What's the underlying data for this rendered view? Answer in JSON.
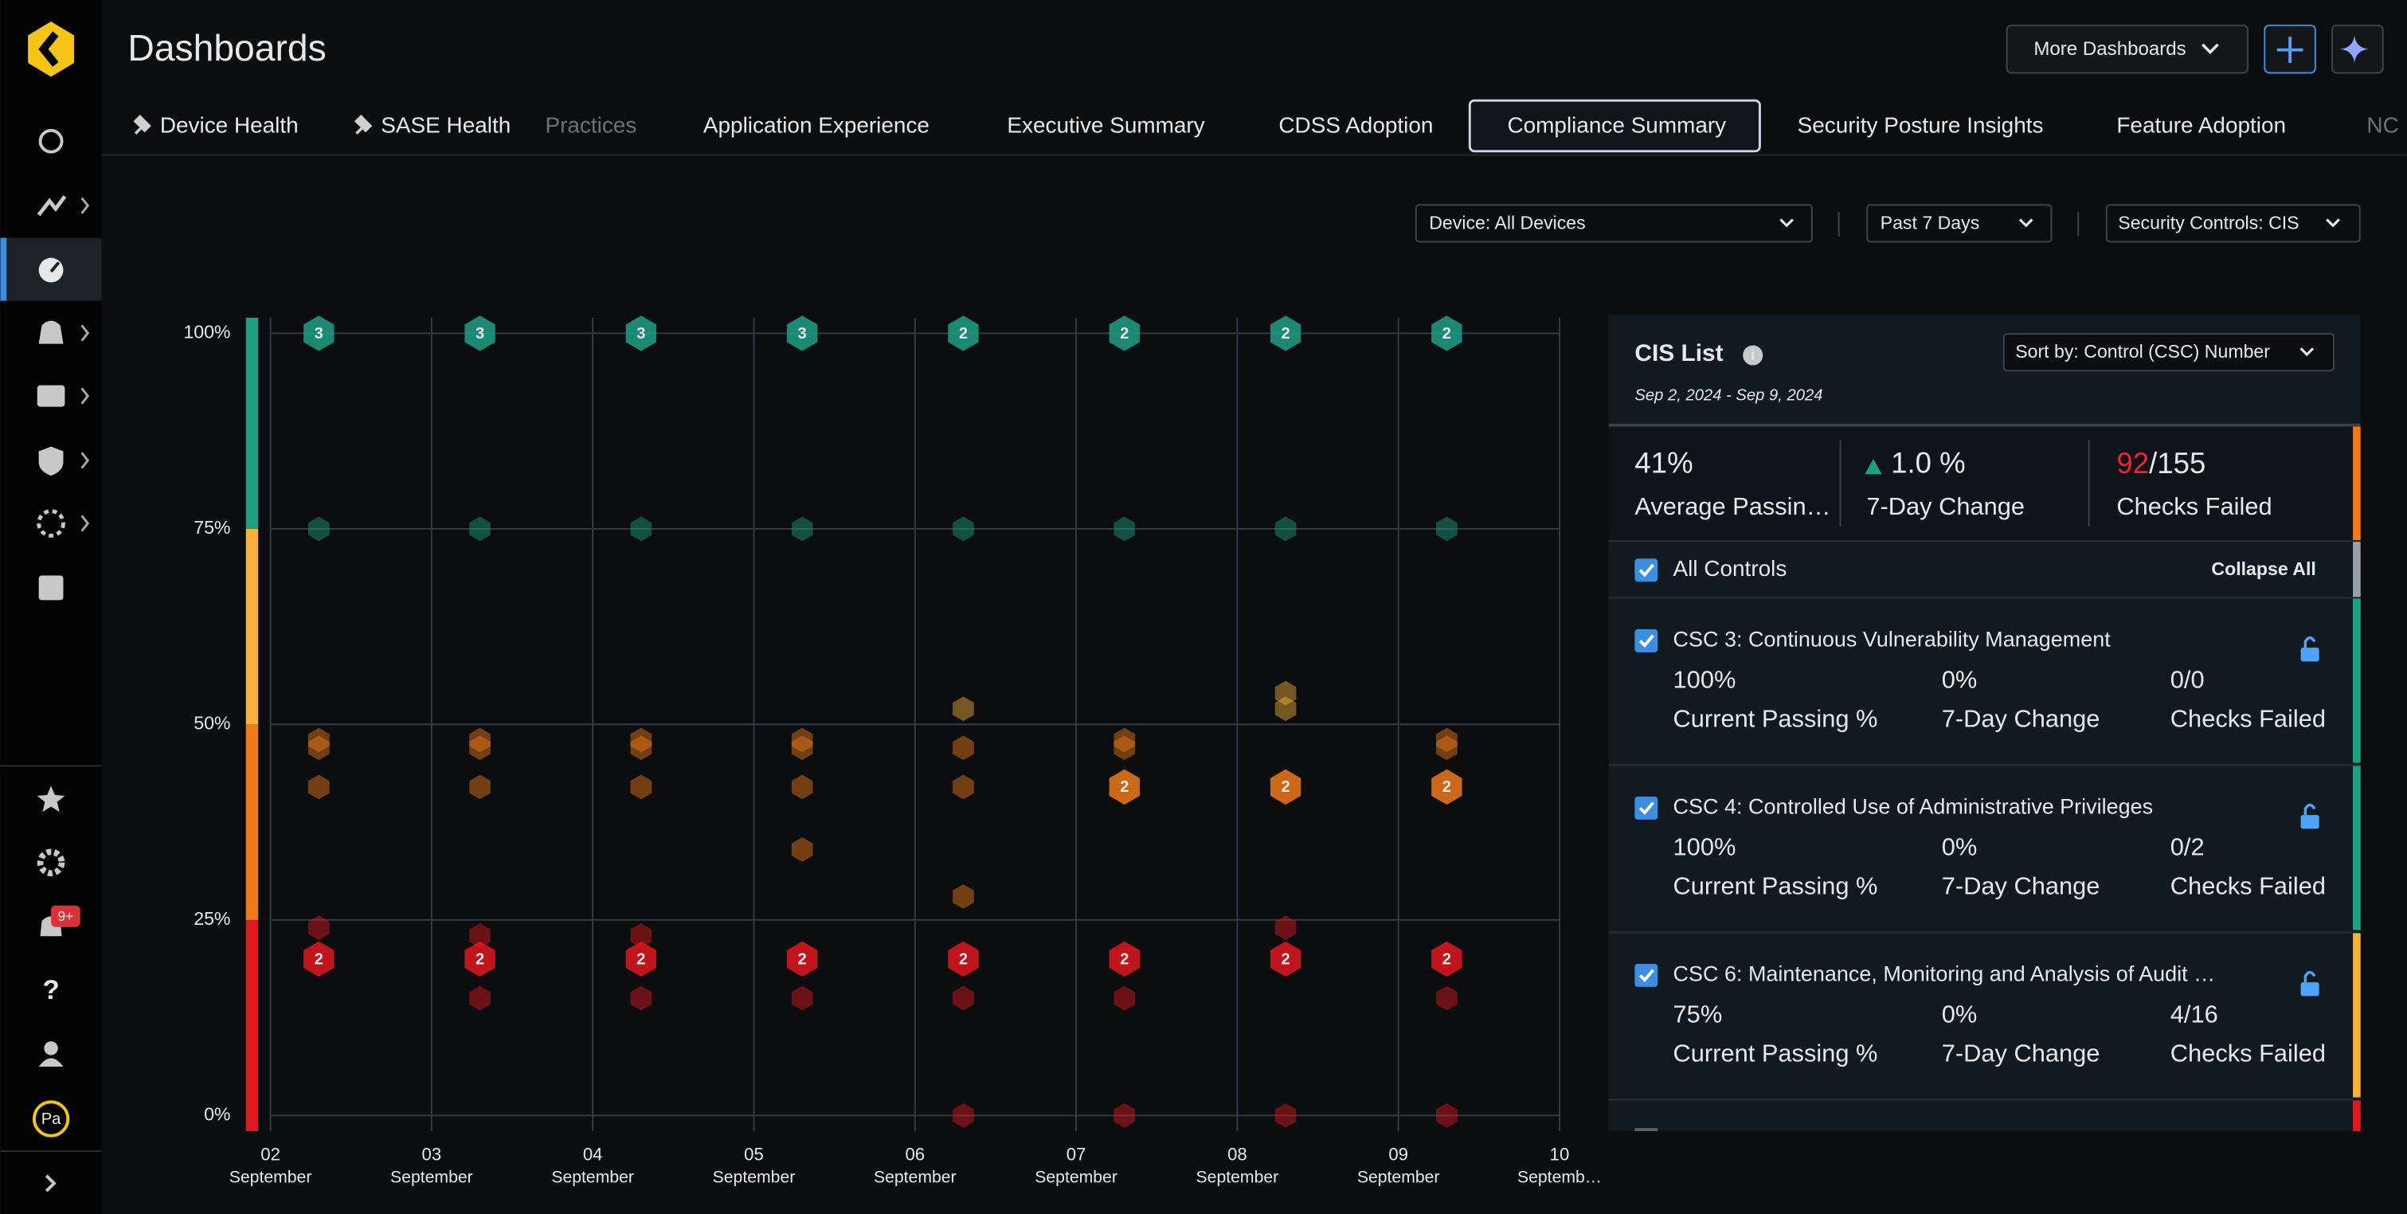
{
  "header": {
    "title": "Dashboards",
    "more_dashboards": "More Dashboards"
  },
  "sidebar": {
    "notification_badge": "9+",
    "avatar": "Pa"
  },
  "tabs": [
    "Device Health",
    "SASE Health",
    "Practices",
    "Application Experience",
    "Executive Summary",
    "CDSS Adoption",
    "Compliance Summary",
    "Security Posture Insights",
    "Feature Adoption",
    "NC"
  ],
  "filters": [
    "Device: All Devices",
    "Past 7 Days",
    "Security Controls: CIS"
  ],
  "chart_data": {
    "type": "scatter",
    "xlim": [
      2,
      10
    ],
    "xticks": [
      {
        "value": 2,
        "label": "02"
      },
      {
        "value": 3,
        "label": "03"
      },
      {
        "value": 4,
        "label": "04"
      },
      {
        "value": 5,
        "label": "05"
      },
      {
        "value": 6,
        "label": "06"
      },
      {
        "value": 7,
        "label": "07"
      },
      {
        "value": 8,
        "label": "08"
      },
      {
        "value": 9,
        "label": "09"
      },
      10
    ],
    "xtick_months": [
      "September",
      "September",
      "September",
      "September",
      "September",
      "September",
      "September",
      "September",
      "Septemb…"
    ],
    "ylim": [
      -2,
      102
    ],
    "yticks": [
      {
        "value": 0,
        "label": "0%"
      },
      {
        "value": 25,
        "label": "25%"
      },
      {
        "value": 50,
        "label": "50%"
      },
      {
        "value": 75,
        "label": "75%"
      },
      {
        "value": 100,
        "label": "100%"
      }
    ],
    "grid": true,
    "bands": [
      {
        "from": 0,
        "to": 25,
        "color": "#e0181f"
      },
      {
        "from": 25,
        "to": 50,
        "color": "#ef7a1a"
      },
      {
        "from": 50,
        "to": 75,
        "color": "#f6b23c"
      },
      {
        "from": 75,
        "to": 100,
        "color": "#1fa085"
      }
    ],
    "x": [
      2.3,
      2.3,
      2.3,
      2.3,
      2.3,
      2.3,
      2.3,
      3.3,
      3.3,
      3.3,
      3.3,
      3.3,
      3.3,
      3.3,
      3.3,
      4.3,
      4.3,
      4.3,
      4.3,
      4.3,
      4.3,
      4.3,
      4.3,
      5.3,
      5.3,
      5.3,
      5.3,
      5.3,
      5.3,
      5.3,
      5.3,
      6.3,
      6.3,
      6.3,
      6.3,
      6.3,
      6.3,
      6.3,
      6.3,
      6.3,
      7.3,
      7.3,
      7.3,
      7.3,
      7.3,
      7.3,
      7.3,
      7.3,
      8.3,
      8.3,
      8.3,
      8.3,
      8.3,
      8.3,
      8.3,
      8.3,
      9.3,
      9.3,
      9.3,
      9.3,
      9.3,
      9.3,
      9.3,
      9.3
    ],
    "values": [
      100,
      75,
      48,
      47,
      42,
      24,
      20,
      100,
      75,
      48,
      47,
      42,
      23,
      20,
      15,
      100,
      75,
      48,
      47,
      42,
      23,
      20,
      15,
      100,
      75,
      48,
      47,
      42,
      34,
      20,
      15,
      100,
      75,
      52,
      47,
      42,
      28,
      20,
      15,
      0,
      100,
      75,
      48,
      47,
      42,
      20,
      15,
      0,
      100,
      75,
      54,
      52,
      42,
      24,
      20,
      0,
      100,
      75,
      48,
      47,
      42,
      20,
      15,
      0
    ],
    "counts": [
      3,
      null,
      null,
      null,
      null,
      null,
      2,
      3,
      null,
      null,
      null,
      null,
      null,
      2,
      null,
      3,
      null,
      null,
      null,
      null,
      null,
      2,
      null,
      3,
      null,
      null,
      null,
      null,
      null,
      2,
      null,
      2,
      null,
      null,
      null,
      null,
      null,
      2,
      null,
      null,
      2,
      null,
      null,
      null,
      2,
      2,
      null,
      null,
      2,
      null,
      null,
      null,
      2,
      null,
      2,
      null,
      2,
      null,
      null,
      null,
      2,
      2,
      null,
      null
    ]
  },
  "cis_panel": {
    "title": "CIS List",
    "date_range": "Sep 2, 2024 - Sep 9, 2024",
    "sort": "Sort by: Control (CSC) Number",
    "summary": {
      "average_passing": {
        "value": "41%",
        "label": "Average Passin…"
      },
      "change": {
        "value": "1.0 %",
        "label": "7-Day Change"
      },
      "failed": {
        "value": "92",
        "total": "/155",
        "label": "Checks Failed"
      }
    },
    "all_controls": "All Controls",
    "collapse_all": "Collapse All",
    "metric_labels": [
      "Current Passing %",
      "7-Day Change",
      "Checks Failed"
    ],
    "controls": [
      {
        "name": "CSC 3: Continuous Vulnerability Management",
        "passing": "100%",
        "change": "0%",
        "failed": "0/0",
        "color": "#1fa085"
      },
      {
        "name": "CSC 4: Controlled Use of Administrative Privileges",
        "passing": "100%",
        "change": "0%",
        "failed": "0/2",
        "color": "#1fa085"
      },
      {
        "name": "CSC 6: Maintenance, Monitoring and Analysis of Audit …",
        "passing": "75%",
        "change": "0%",
        "failed": "4/16",
        "color": "#f6b23c"
      }
    ]
  }
}
